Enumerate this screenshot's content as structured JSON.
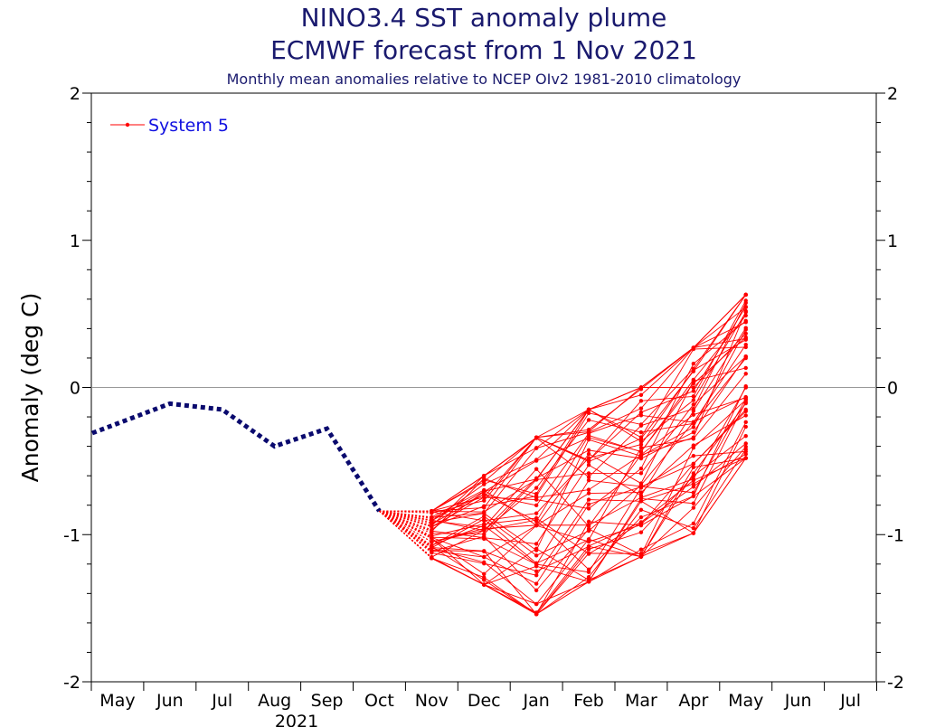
{
  "chart_data": {
    "type": "line",
    "title": "NINO3.4 SST anomaly plume",
    "subtitle": "ECMWF forecast from 1 Nov 2021",
    "caption": "Monthly mean anomalies relative to NCEP OIv2 1981-2010 climatology",
    "ylabel": "Anomaly (deg C)",
    "year_label": "2021",
    "ylim": [
      -2,
      2
    ],
    "y_ticks": [
      "-2",
      "-1",
      "0",
      "1",
      "2"
    ],
    "x_months": [
      "May",
      "Jun",
      "Jul",
      "Aug",
      "Sep",
      "Oct",
      "Nov",
      "Dec",
      "Jan",
      "Feb",
      "Mar",
      "Apr",
      "May",
      "Jun",
      "Jul"
    ],
    "legend": {
      "label": "System 5",
      "position": "top-left"
    },
    "colors": {
      "observed": "#0a0a6e",
      "forecast": "#ff0000",
      "title": "#1a1a6e",
      "legend_text": "#1010e0"
    },
    "observed": {
      "months": [
        "May",
        "Jun",
        "Jul",
        "Aug",
        "Sep",
        "Oct"
      ],
      "values": [
        -0.31,
        -0.11,
        -0.15,
        -0.4,
        -0.28,
        -0.84
      ]
    },
    "forecast": {
      "months": [
        "Nov",
        "Dec",
        "Jan",
        "Feb",
        "Mar",
        "Apr",
        "May"
      ],
      "min": [
        -1.16,
        -1.34,
        -1.54,
        -1.32,
        -1.15,
        -0.99,
        -0.48
      ],
      "max": [
        -0.84,
        -0.6,
        -0.34,
        -0.15,
        0.0,
        0.27,
        0.63
      ],
      "members": 51
    }
  }
}
